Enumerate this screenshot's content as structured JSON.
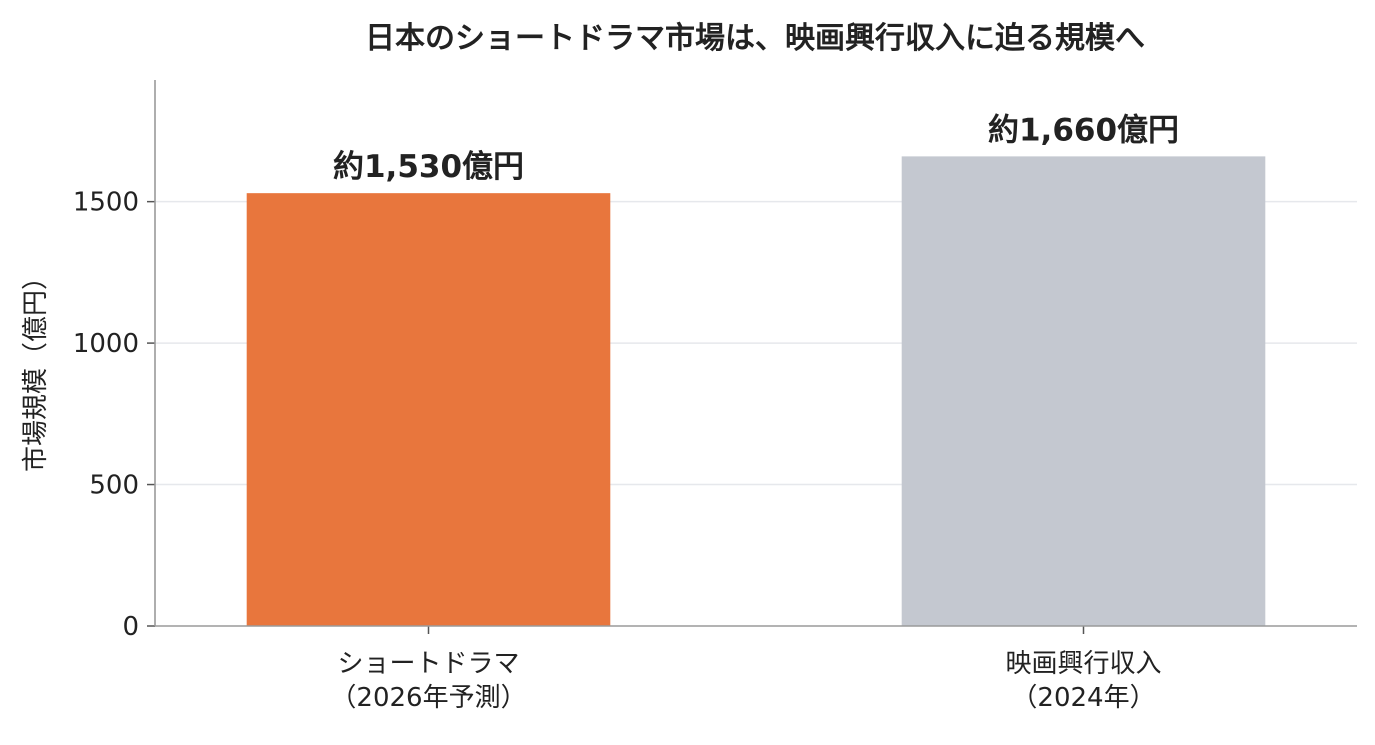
{
  "chart_data": {
    "type": "bar",
    "title": "日本のショートドラマ市場は、映画興行収入に迫る規模へ",
    "xlabel": "",
    "ylabel": "市場規模（億円）",
    "ylim": [
      0,
      1930
    ],
    "yticks": [
      0,
      500,
      1000,
      1500
    ],
    "grid": true,
    "categories": [
      [
        "ショートドラマ",
        "（2026年予測）"
      ],
      [
        "映画興行収入",
        "（2024年）"
      ]
    ],
    "values": [
      1530,
      1660
    ],
    "data_labels": [
      "約1,530億円",
      "約1,660億円"
    ],
    "colors": [
      "#E8763D",
      "#C4C8D0"
    ]
  }
}
